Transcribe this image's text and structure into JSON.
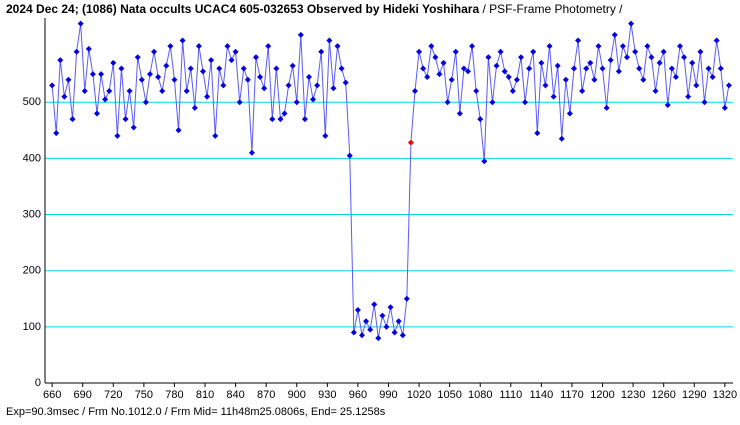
{
  "chart_data": {
    "type": "line",
    "title": "2024 Dec 24; (1086) Nata occults UCAC4 605-032653 Observed by Hideki Yoshihara",
    "subtitle": " / PSF-Frame Photometry /",
    "annotation": "Exp=90.3msec / Frm No.1012.0 / Frm Mid= 11h48m25.0806s, End= 25.1258s",
    "x": [
      660,
      664,
      668,
      672,
      676,
      680,
      684,
      688,
      692,
      696,
      700,
      704,
      708,
      712,
      716,
      720,
      724,
      728,
      732,
      736,
      740,
      744,
      748,
      752,
      756,
      760,
      764,
      768,
      772,
      776,
      780,
      784,
      788,
      792,
      796,
      800,
      804,
      808,
      812,
      816,
      820,
      824,
      828,
      832,
      836,
      840,
      844,
      848,
      852,
      856,
      860,
      864,
      868,
      872,
      876,
      880,
      884,
      888,
      892,
      896,
      900,
      904,
      908,
      912,
      916,
      920,
      924,
      928,
      932,
      936,
      940,
      944,
      948,
      952,
      956,
      960,
      964,
      968,
      972,
      976,
      980,
      984,
      988,
      992,
      996,
      1000,
      1004,
      1008,
      1012,
      1016,
      1020,
      1024,
      1028,
      1032,
      1036,
      1040,
      1044,
      1048,
      1052,
      1056,
      1060,
      1064,
      1068,
      1072,
      1076,
      1080,
      1084,
      1088,
      1092,
      1096,
      1100,
      1104,
      1108,
      1112,
      1116,
      1120,
      1124,
      1128,
      1132,
      1136,
      1140,
      1144,
      1148,
      1152,
      1156,
      1160,
      1164,
      1168,
      1172,
      1176,
      1180,
      1184,
      1188,
      1192,
      1196,
      1200,
      1204,
      1208,
      1212,
      1216,
      1220,
      1224,
      1228,
      1232,
      1236,
      1240,
      1244,
      1248,
      1252,
      1256,
      1260,
      1264,
      1268,
      1272,
      1276,
      1280,
      1284,
      1288,
      1292,
      1296,
      1300,
      1304,
      1308,
      1312,
      1316,
      1320,
      1324
    ],
    "series": [
      {
        "color": "#0000e0",
        "line_color": "#5a5aff",
        "values": [
          530,
          445,
          575,
          510,
          540,
          470,
          590,
          640,
          520,
          595,
          550,
          480,
          550,
          505,
          520,
          570,
          440,
          560,
          470,
          520,
          455,
          580,
          540,
          500,
          550,
          590,
          545,
          520,
          565,
          600,
          540,
          450,
          610,
          520,
          560,
          490,
          600,
          555,
          510,
          575,
          440,
          560,
          530,
          600,
          575,
          590,
          500,
          560,
          540,
          410,
          580,
          545,
          525,
          600,
          470,
          560,
          470,
          480,
          530,
          565,
          500,
          620,
          470,
          545,
          505,
          530,
          590,
          440,
          610,
          525,
          600,
          560,
          535,
          405,
          90,
          130,
          85,
          110,
          95,
          140,
          80,
          120,
          100,
          135,
          90,
          110,
          85,
          150,
          428,
          520,
          590,
          560,
          545,
          600,
          580,
          550,
          570,
          500,
          540,
          590,
          480,
          560,
          555,
          600,
          520,
          470,
          395,
          580,
          500,
          565,
          590,
          555,
          545,
          520,
          540,
          580,
          500,
          560,
          590,
          445,
          570,
          530,
          600,
          510,
          565,
          435,
          540,
          480,
          560,
          610,
          520,
          560,
          570,
          540,
          600,
          560,
          490,
          575,
          620,
          555,
          600,
          580,
          640,
          590,
          560,
          540,
          600,
          580,
          520,
          570,
          590,
          495,
          560,
          545,
          600,
          580,
          510,
          570,
          530,
          590,
          500,
          560,
          545,
          610,
          560,
          490,
          530
        ]
      }
    ],
    "highlight_index": 88,
    "highlight_color": "#ff0000",
    "xlim": [
      653,
      1328
    ],
    "ylim": [
      0,
      650
    ],
    "xticks": [
      660,
      690,
      720,
      750,
      780,
      810,
      840,
      870,
      900,
      930,
      960,
      990,
      1020,
      1050,
      1080,
      1110,
      1140,
      1170,
      1200,
      1230,
      1260,
      1290,
      1320
    ],
    "yticks": [
      0,
      100,
      200,
      300,
      400,
      500
    ],
    "grid": true
  }
}
